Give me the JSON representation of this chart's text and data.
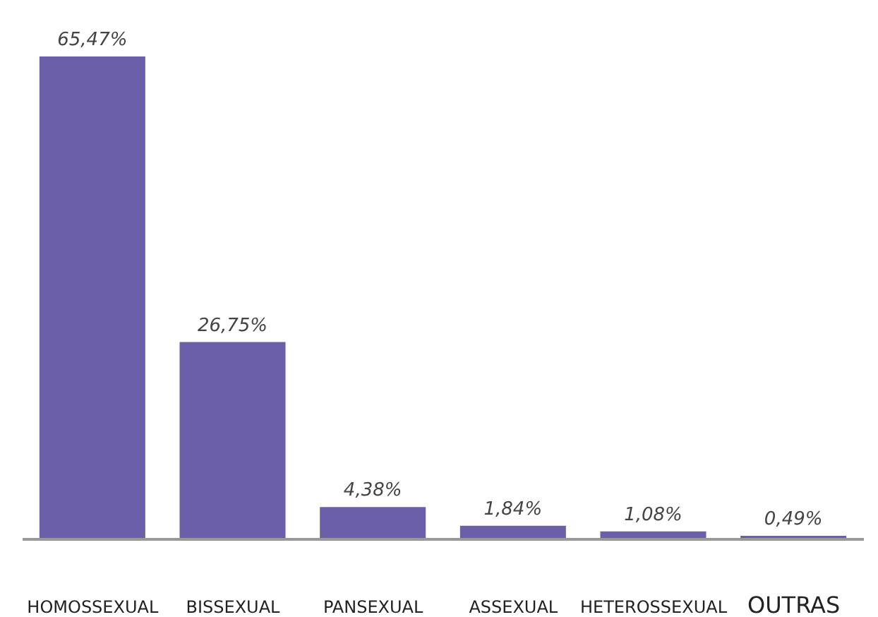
{
  "chart_data": {
    "type": "bar",
    "categories": [
      "HOMOSSEXUAL",
      "BISSEXUAL",
      "PANSEXUAL",
      "ASSEXUAL",
      "HETEROSSEXUAL",
      "OUTRAS"
    ],
    "values": [
      65.47,
      26.75,
      4.38,
      1.84,
      1.08,
      0.49
    ],
    "value_labels": [
      "65,47%",
      "26,75%",
      "4,38%",
      "1,84%",
      "1,08%",
      "0,49%"
    ],
    "color": "#6c5fa9",
    "grid": false,
    "legend": false
  }
}
